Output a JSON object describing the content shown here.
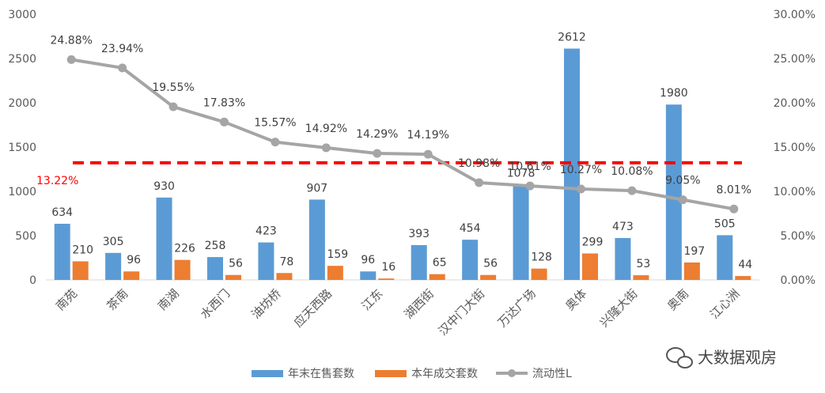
{
  "chart_data": {
    "type": "bar",
    "categories": [
      "南苑",
      "茶南",
      "南湖",
      "水西门",
      "油坊桥",
      "应天西路",
      "江东",
      "湖西街",
      "汉中门大街",
      "万达广场",
      "奥体",
      "兴隆大街",
      "奥南",
      "江心洲"
    ],
    "series": [
      {
        "name": "年末在售套数",
        "kind": "bar",
        "axis": "left",
        "color": "#5B9BD5",
        "values": [
          634,
          305,
          930,
          258,
          423,
          907,
          96,
          393,
          454,
          1078,
          2612,
          473,
          1980,
          505
        ]
      },
      {
        "name": "本年成交套数",
        "kind": "bar",
        "axis": "left",
        "color": "#ED7D31",
        "values": [
          210,
          96,
          226,
          56,
          78,
          159,
          16,
          65,
          56,
          128,
          299,
          53,
          197,
          44
        ]
      },
      {
        "name": "流动性L",
        "kind": "line",
        "axis": "right",
        "color": "#A5A5A5",
        "values": [
          24.88,
          23.94,
          19.55,
          17.83,
          15.57,
          14.92,
          14.29,
          14.19,
          10.98,
          10.61,
          10.27,
          10.08,
          9.05,
          8.01
        ],
        "labels": [
          "24.88%",
          "23.94%",
          "19.55%",
          "17.83%",
          "15.57%",
          "14.92%",
          "14.29%",
          "14.19%",
          "10.98%",
          "10.61%",
          "10.27%",
          "10.08%",
          "9.05%",
          "8.01%"
        ]
      }
    ],
    "y_left": {
      "ylim": [
        0,
        3000
      ],
      "ticks": [
        "0",
        "500",
        "1000",
        "1500",
        "2000",
        "2500",
        "3000"
      ]
    },
    "y_right": {
      "ylim": [
        0,
        30
      ],
      "ticks": [
        "0.00%",
        "5.00%",
        "10.00%",
        "15.00%",
        "20.00%",
        "25.00%",
        "30.00%"
      ]
    },
    "reference_line": {
      "value": 13.22,
      "axis": "right",
      "label": "13.22%",
      "color": "#FF0000",
      "style": "dashed"
    },
    "legend": {
      "position": "bottom"
    },
    "grid": false
  },
  "watermark": {
    "text": "大数据观房",
    "icon": "wechat-icon"
  }
}
